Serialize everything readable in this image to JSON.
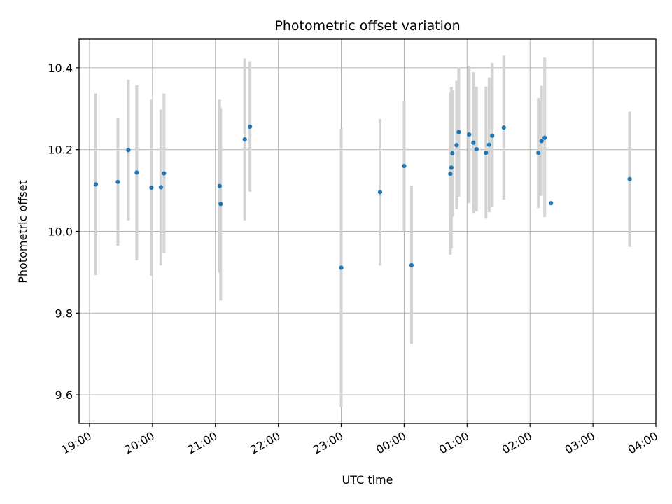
{
  "chart_data": {
    "type": "scatter",
    "title": "Photometric offset variation",
    "xlabel": "UTC time",
    "ylabel": "Photometric offset",
    "x_unit": "UTC time, 19:00 through 04:00 of the following day",
    "xlim": [
      "18:50",
      "04:00"
    ],
    "ylim": [
      9.53,
      10.47
    ],
    "x_ticks": [
      "19:00",
      "20:00",
      "21:00",
      "22:00",
      "23:00",
      "00:00",
      "01:00",
      "02:00",
      "03:00",
      "04:00"
    ],
    "y_ticks": [
      "9.6",
      "9.8",
      "10.0",
      "10.2",
      "10.4"
    ],
    "grid": true,
    "marker_color": "#1f77b4",
    "errorbar_color": "#d3d3d3",
    "points": [
      {
        "x": "19:06",
        "y": 10.115,
        "lo": 9.893,
        "hi": 10.337
      },
      {
        "x": "19:27",
        "y": 10.121,
        "lo": 9.965,
        "hi": 10.278
      },
      {
        "x": "19:37",
        "y": 10.199,
        "lo": 10.027,
        "hi": 10.371
      },
      {
        "x": "19:45",
        "y": 10.144,
        "lo": 9.929,
        "hi": 10.357
      },
      {
        "x": "19:59",
        "y": 10.107,
        "lo": 9.891,
        "hi": 10.322
      },
      {
        "x": "20:08",
        "y": 10.108,
        "lo": 9.917,
        "hi": 10.298
      },
      {
        "x": "20:11",
        "y": 10.142,
        "lo": 9.947,
        "hi": 10.337
      },
      {
        "x": "21:04",
        "y": 10.111,
        "lo": 9.899,
        "hi": 10.322
      },
      {
        "x": "21:05",
        "y": 10.067,
        "lo": 9.831,
        "hi": 10.302
      },
      {
        "x": "21:28",
        "y": 10.225,
        "lo": 10.027,
        "hi": 10.423
      },
      {
        "x": "21:33",
        "y": 10.256,
        "lo": 10.097,
        "hi": 10.416
      },
      {
        "x": "23:00",
        "y": 9.911,
        "lo": 9.57,
        "hi": 10.252
      },
      {
        "x": "23:37",
        "y": 10.096,
        "lo": 9.916,
        "hi": 10.275
      },
      {
        "x": "00:00",
        "y": 10.16,
        "lo": 10.0,
        "hi": 10.32
      },
      {
        "x": "00:07",
        "y": 9.917,
        "lo": 9.725,
        "hi": 10.112
      },
      {
        "x": "00:44",
        "y": 10.141,
        "lo": 9.943,
        "hi": 10.339
      },
      {
        "x": "00:45",
        "y": 10.156,
        "lo": 9.958,
        "hi": 10.353
      },
      {
        "x": "00:46",
        "y": 10.191,
        "lo": 10.036,
        "hi": 10.346
      },
      {
        "x": "00:50",
        "y": 10.211,
        "lo": 10.054,
        "hi": 10.368
      },
      {
        "x": "00:52",
        "y": 10.243,
        "lo": 10.085,
        "hi": 10.401
      },
      {
        "x": "01:02",
        "y": 10.237,
        "lo": 10.069,
        "hi": 10.404
      },
      {
        "x": "01:06",
        "y": 10.217,
        "lo": 10.045,
        "hi": 10.389
      },
      {
        "x": "01:09",
        "y": 10.201,
        "lo": 10.049,
        "hi": 10.354
      },
      {
        "x": "01:18",
        "y": 10.192,
        "lo": 10.031,
        "hi": 10.354
      },
      {
        "x": "01:21",
        "y": 10.212,
        "lo": 10.047,
        "hi": 10.377
      },
      {
        "x": "01:24",
        "y": 10.234,
        "lo": 10.059,
        "hi": 10.412
      },
      {
        "x": "01:35",
        "y": 10.254,
        "lo": 10.078,
        "hi": 10.43
      },
      {
        "x": "02:08",
        "y": 10.192,
        "lo": 10.057,
        "hi": 10.326
      },
      {
        "x": "02:11",
        "y": 10.221,
        "lo": 10.087,
        "hi": 10.356
      },
      {
        "x": "02:14",
        "y": 10.229,
        "lo": 10.035,
        "hi": 10.425
      },
      {
        "x": "02:20",
        "y": 10.069,
        "lo": null,
        "hi": null
      },
      {
        "x": "03:35",
        "y": 10.128,
        "lo": 9.962,
        "hi": 10.293
      }
    ]
  }
}
